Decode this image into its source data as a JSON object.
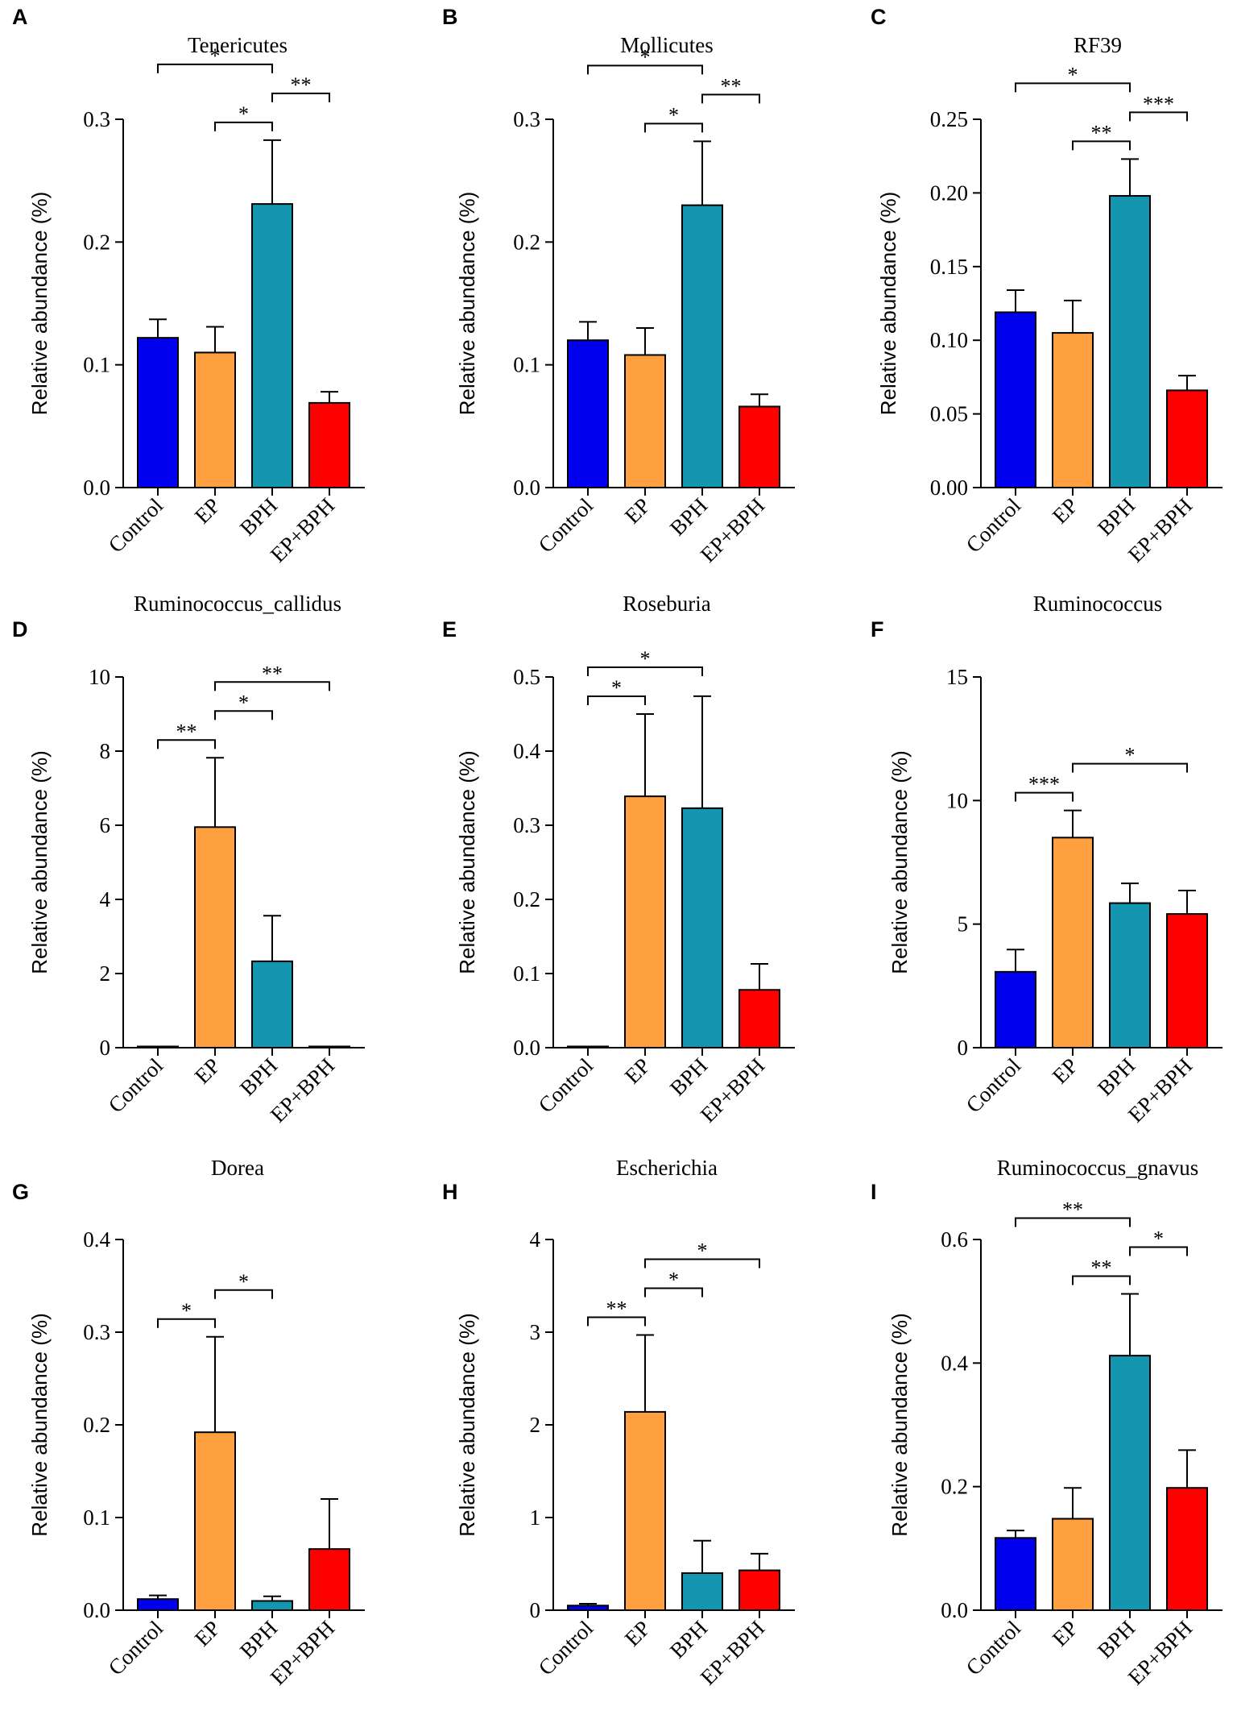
{
  "figure": {
    "ylabel": "Relative abundance (%)",
    "colors": {
      "Control": "#0000ee",
      "EP": "#ffa040",
      "BPH": "#1496b0",
      "EP+BPH": "#ff0000"
    }
  },
  "chart_data": [
    {
      "panel": "A",
      "type": "bar",
      "title": "Tenericutes",
      "categories": [
        "Control",
        "EP",
        "BPH",
        "EP+BPH"
      ],
      "values": [
        0.122,
        0.11,
        0.231,
        0.069
      ],
      "errors": [
        0.015,
        0.021,
        0.052,
        0.009
      ],
      "ylim": [
        0,
        0.3
      ],
      "yticks": [
        "0.0",
        "0.1",
        "0.2",
        "0.3"
      ],
      "significance": [
        {
          "from": 0,
          "to": 2,
          "label": "*"
        },
        {
          "from": 1,
          "to": 2,
          "label": "*"
        },
        {
          "from": 2,
          "to": 3,
          "label": "**"
        }
      ]
    },
    {
      "panel": "B",
      "type": "bar",
      "title": "Mollicutes",
      "categories": [
        "Control",
        "EP",
        "BPH",
        "EP+BPH"
      ],
      "values": [
        0.12,
        0.108,
        0.23,
        0.066
      ],
      "errors": [
        0.015,
        0.022,
        0.052,
        0.01
      ],
      "ylim": [
        0,
        0.3
      ],
      "yticks": [
        "0.0",
        "0.1",
        "0.2",
        "0.3"
      ],
      "significance": [
        {
          "from": 0,
          "to": 2,
          "label": "*"
        },
        {
          "from": 1,
          "to": 2,
          "label": "*"
        },
        {
          "from": 2,
          "to": 3,
          "label": "**"
        }
      ]
    },
    {
      "panel": "C",
      "type": "bar",
      "title": "RF39",
      "categories": [
        "Control",
        "EP",
        "BPH",
        "EP+BPH"
      ],
      "values": [
        0.119,
        0.105,
        0.198,
        0.066
      ],
      "errors": [
        0.015,
        0.022,
        0.025,
        0.01
      ],
      "ylim": [
        0,
        0.25
      ],
      "yticks": [
        "0.00",
        "0.05",
        "0.10",
        "0.15",
        "0.20",
        "0.25"
      ],
      "significance": [
        {
          "from": 0,
          "to": 2,
          "label": "*"
        },
        {
          "from": 1,
          "to": 2,
          "label": "**"
        },
        {
          "from": 2,
          "to": 3,
          "label": "***"
        }
      ]
    },
    {
      "panel": "D",
      "type": "bar",
      "title": "Ruminococcus_callidus",
      "categories": [
        "Control",
        "EP",
        "BPH",
        "EP+BPH"
      ],
      "values": [
        0.02,
        5.95,
        2.33,
        0.02
      ],
      "errors": [
        0.0,
        1.87,
        1.23,
        0.0
      ],
      "ylim": [
        0,
        10
      ],
      "yticks": [
        "0",
        "2",
        "4",
        "6",
        "8",
        "10"
      ],
      "significance": [
        {
          "from": 0,
          "to": 1,
          "label": "**"
        },
        {
          "from": 1,
          "to": 2,
          "label": "*"
        },
        {
          "from": 1,
          "to": 3,
          "label": "**"
        }
      ]
    },
    {
      "panel": "E",
      "type": "bar",
      "title": "Roseburia",
      "categories": [
        "Control",
        "EP",
        "BPH",
        "EP+BPH"
      ],
      "values": [
        0.001,
        0.339,
        0.323,
        0.078
      ],
      "errors": [
        0.0,
        0.111,
        0.151,
        0.035
      ],
      "ylim": [
        0,
        0.5
      ],
      "yticks": [
        "0.0",
        "0.1",
        "0.2",
        "0.3",
        "0.4",
        "0.5"
      ],
      "significance": [
        {
          "from": 0,
          "to": 1,
          "label": "*"
        },
        {
          "from": 0,
          "to": 2,
          "label": "*"
        }
      ]
    },
    {
      "panel": "F",
      "type": "bar",
      "title": "Ruminococcus",
      "categories": [
        "Control",
        "EP",
        "BPH",
        "EP+BPH"
      ],
      "values": [
        3.07,
        8.5,
        5.85,
        5.41
      ],
      "errors": [
        0.9,
        1.1,
        0.8,
        0.95
      ],
      "ylim": [
        0,
        15
      ],
      "yticks": [
        "0",
        "5",
        "10",
        "15"
      ],
      "significance": [
        {
          "from": 0,
          "to": 1,
          "label": "***"
        },
        {
          "from": 1,
          "to": 3,
          "label": "*"
        }
      ]
    },
    {
      "panel": "G",
      "type": "bar",
      "title": "Dorea",
      "categories": [
        "Control",
        "EP",
        "BPH",
        "EP+BPH"
      ],
      "values": [
        0.012,
        0.192,
        0.01,
        0.066
      ],
      "errors": [
        0.004,
        0.103,
        0.005,
        0.054
      ],
      "ylim": [
        0,
        0.4
      ],
      "yticks": [
        "0.0",
        "0.1",
        "0.2",
        "0.3",
        "0.4"
      ],
      "significance": [
        {
          "from": 0,
          "to": 1,
          "label": "*"
        },
        {
          "from": 1,
          "to": 2,
          "label": "*"
        }
      ]
    },
    {
      "panel": "H",
      "type": "bar",
      "title": "Escherichia",
      "categories": [
        "Control",
        "EP",
        "BPH",
        "EP+BPH"
      ],
      "values": [
        0.05,
        2.14,
        0.4,
        0.43
      ],
      "errors": [
        0.02,
        0.83,
        0.35,
        0.18
      ],
      "ylim": [
        0,
        4
      ],
      "yticks": [
        "0",
        "1",
        "2",
        "3",
        "4"
      ],
      "significance": [
        {
          "from": 0,
          "to": 1,
          "label": "**"
        },
        {
          "from": 1,
          "to": 2,
          "label": "*"
        },
        {
          "from": 1,
          "to": 3,
          "label": "*"
        }
      ]
    },
    {
      "panel": "I",
      "type": "bar",
      "title": "Ruminococcus_gnavus",
      "categories": [
        "Control",
        "EP",
        "BPH",
        "EP+BPH"
      ],
      "values": [
        0.117,
        0.148,
        0.412,
        0.198
      ],
      "errors": [
        0.012,
        0.05,
        0.1,
        0.061
      ],
      "ylim": [
        0,
        0.6
      ],
      "yticks": [
        "0.0",
        "0.2",
        "0.4",
        "0.6"
      ],
      "significance": [
        {
          "from": 0,
          "to": 2,
          "label": "**"
        },
        {
          "from": 1,
          "to": 2,
          "label": "**"
        },
        {
          "from": 2,
          "to": 3,
          "label": "*"
        }
      ]
    }
  ]
}
